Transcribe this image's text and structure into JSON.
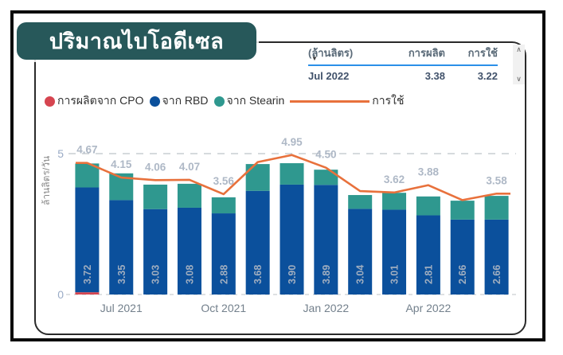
{
  "title": "ปริมาณไบโอดีเซล",
  "table": {
    "headers": [
      "(ล้านลิตร)",
      "การผลิต",
      "การใช้"
    ],
    "sort_icon": "▼",
    "row": {
      "period": "Jul 2022",
      "production": "3.38",
      "usage": "3.22"
    }
  },
  "scrollbar": {
    "up_icon": "∧",
    "down_icon": "∨"
  },
  "legend": {
    "items": [
      {
        "label": "การผลิตจาก CPO",
        "color": "#d64550"
      },
      {
        "label": "จาก RBD",
        "color": "#0b509c"
      },
      {
        "label": "จาก Stearin",
        "color": "#2f988f"
      }
    ],
    "line_item": {
      "label": "การใช้",
      "color": "#e8713c"
    }
  },
  "chart_data": {
    "type": "bar",
    "subtype": "stacked-bars-with-line",
    "title": "ปริมาณไบโอดีเซล",
    "n_categories": 13,
    "x_tick_labels": [
      {
        "index": 1,
        "label": "Jul 2021"
      },
      {
        "index": 4,
        "label": "Oct 2021"
      },
      {
        "index": 7,
        "label": "Jan 2022"
      },
      {
        "index": 10,
        "label": "Apr 2022"
      }
    ],
    "ylabel": "ล้านลิตร/วัน",
    "ylim": [
      0,
      5
    ],
    "yticks": [
      {
        "value": 0,
        "label": "0"
      },
      {
        "value": 5,
        "label": "5"
      }
    ],
    "gridline_value": 5,
    "grid_on": true,
    "legend_position": "top",
    "bar_series": [
      {
        "name": "การผลิตจาก CPO",
        "color": "#d64550",
        "values": [
          0.08,
          0,
          0,
          0,
          0,
          0,
          0,
          0,
          0,
          0,
          0,
          0,
          0
        ]
      },
      {
        "name": "จาก RBD",
        "color": "#0b509c",
        "values": [
          3.72,
          3.35,
          3.03,
          3.08,
          2.88,
          3.68,
          3.9,
          3.89,
          3.04,
          3.01,
          2.81,
          2.66,
          2.66
        ],
        "value_labels": [
          "3.72",
          "3.35",
          "3.03",
          "3.08",
          "2.88",
          "3.68",
          "3.90",
          "3.89",
          "3.04",
          "3.01",
          "2.81",
          "2.66",
          "2.66"
        ]
      },
      {
        "name": "จาก Stearin",
        "color": "#2f988f",
        "values": [
          0.85,
          0.95,
          0.87,
          0.85,
          0.57,
          0.95,
          0.76,
          0.54,
          0.49,
          0.6,
          0.67,
          0.67,
          0.84
        ]
      }
    ],
    "line_series": {
      "name": "การใช้",
      "color": "#e8713c",
      "values": [
        4.67,
        4.15,
        4.06,
        4.07,
        3.56,
        4.7,
        4.95,
        4.5,
        3.67,
        3.62,
        3.88,
        3.35,
        3.58
      ],
      "point_labels": [
        "4.67",
        "4.15",
        "4.06",
        "4.07",
        "3.56",
        null,
        "4.95",
        "4.50",
        null,
        "3.62",
        "3.88",
        null,
        "3.58"
      ]
    },
    "colors": {
      "grid": "#c9cdd2",
      "axis_tick_text": "#9aabc6",
      "x_tick_text": "#73808c",
      "bar_label": "#9fadbf",
      "line_label": "#aeb8c6",
      "ylabel_text": "#8a8a8a"
    }
  }
}
